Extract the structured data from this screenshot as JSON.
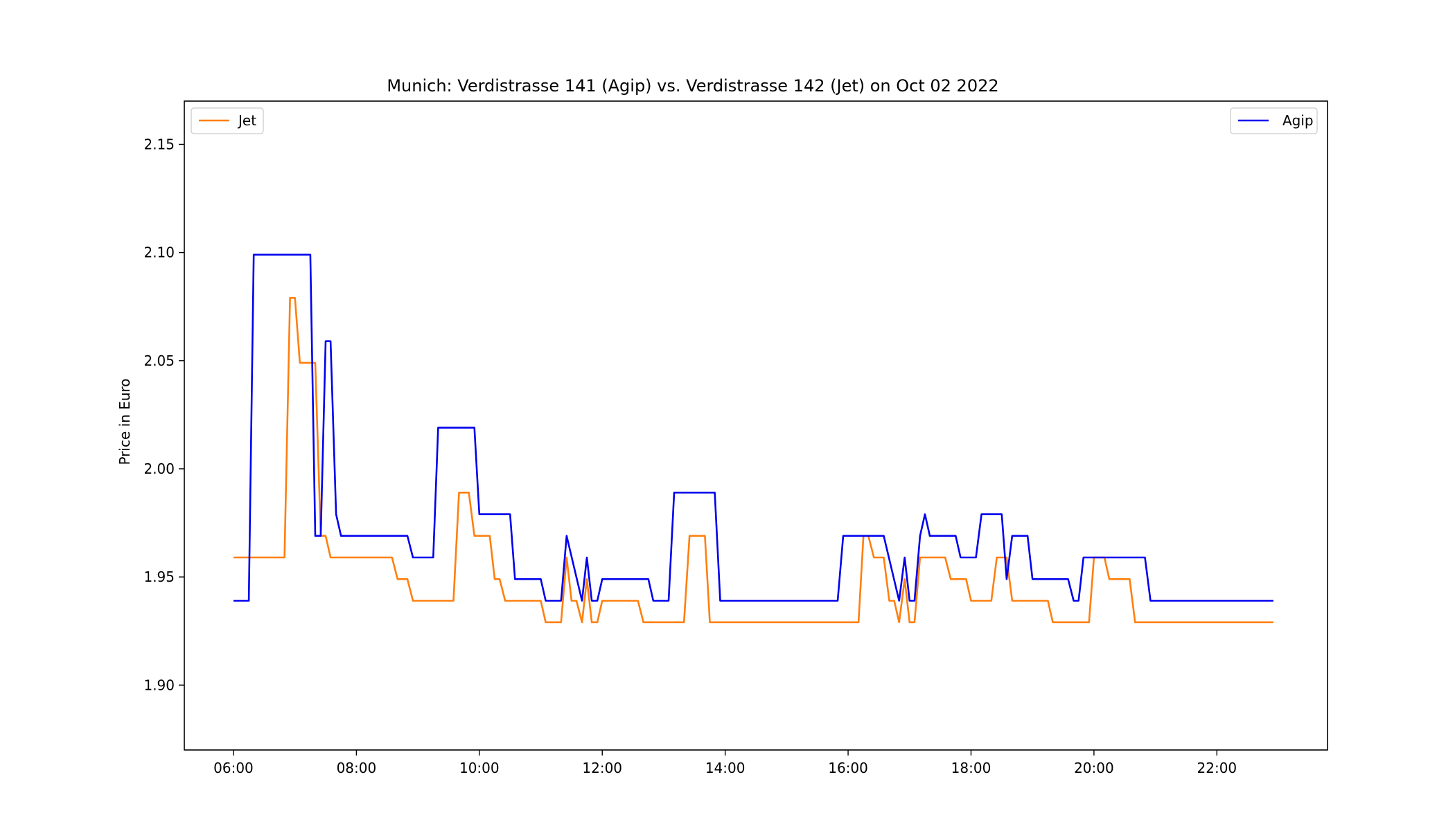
{
  "chart_data": {
    "type": "line",
    "title": "Munich: Verdistrasse 141 (Agip) vs. Verdistrasse 142 (Jet) on Oct 02 2022",
    "xlabel": "",
    "ylabel": "Price in Euro",
    "xlim": [
      5.2,
      23.8
    ],
    "ylim": [
      1.87,
      2.17
    ],
    "x_ticks": [
      {
        "value": 6,
        "label": "06:00"
      },
      {
        "value": 8,
        "label": "08:00"
      },
      {
        "value": 10,
        "label": "10:00"
      },
      {
        "value": 12,
        "label": "12:00"
      },
      {
        "value": 14,
        "label": "14:00"
      },
      {
        "value": 16,
        "label": "16:00"
      },
      {
        "value": 18,
        "label": "18:00"
      },
      {
        "value": 20,
        "label": "20:00"
      },
      {
        "value": 22,
        "label": "22:00"
      }
    ],
    "y_ticks": [
      {
        "value": 1.9,
        "label": "1.90"
      },
      {
        "value": 1.95,
        "label": "1.95"
      },
      {
        "value": 2.0,
        "label": "2.00"
      },
      {
        "value": 2.05,
        "label": "2.05"
      },
      {
        "value": 2.1,
        "label": "2.10"
      },
      {
        "value": 2.15,
        "label": "2.15"
      }
    ],
    "grid": false,
    "series": [
      {
        "name": "Jet",
        "color": "#ff7f0e",
        "legend_position": "upper-left",
        "points": [
          [
            6.0,
            1.959
          ],
          [
            6.83,
            1.959
          ],
          [
            6.92,
            2.079
          ],
          [
            7.0,
            2.079
          ],
          [
            7.08,
            2.049
          ],
          [
            7.33,
            2.049
          ],
          [
            7.42,
            1.969
          ],
          [
            7.5,
            1.969
          ],
          [
            7.58,
            1.959
          ],
          [
            8.58,
            1.959
          ],
          [
            8.67,
            1.949
          ],
          [
            8.83,
            1.949
          ],
          [
            8.92,
            1.939
          ],
          [
            9.58,
            1.939
          ],
          [
            9.67,
            1.989
          ],
          [
            9.83,
            1.989
          ],
          [
            9.92,
            1.969
          ],
          [
            10.17,
            1.969
          ],
          [
            10.25,
            1.949
          ],
          [
            10.33,
            1.949
          ],
          [
            10.42,
            1.939
          ],
          [
            11.0,
            1.939
          ],
          [
            11.08,
            1.929
          ],
          [
            11.33,
            1.929
          ],
          [
            11.42,
            1.959
          ],
          [
            11.5,
            1.939
          ],
          [
            11.58,
            1.939
          ],
          [
            11.67,
            1.929
          ],
          [
            11.75,
            1.949
          ],
          [
            11.83,
            1.929
          ],
          [
            11.92,
            1.929
          ],
          [
            12.0,
            1.939
          ],
          [
            12.58,
            1.939
          ],
          [
            12.67,
            1.929
          ],
          [
            13.33,
            1.929
          ],
          [
            13.42,
            1.969
          ],
          [
            13.67,
            1.969
          ],
          [
            13.75,
            1.929
          ],
          [
            16.17,
            1.929
          ],
          [
            16.25,
            1.969
          ],
          [
            16.33,
            1.969
          ],
          [
            16.42,
            1.959
          ],
          [
            16.58,
            1.959
          ],
          [
            16.67,
            1.939
          ],
          [
            16.75,
            1.939
          ],
          [
            16.83,
            1.929
          ],
          [
            16.92,
            1.949
          ],
          [
            17.0,
            1.929
          ],
          [
            17.08,
            1.929
          ],
          [
            17.17,
            1.959
          ],
          [
            17.58,
            1.959
          ],
          [
            17.67,
            1.949
          ],
          [
            17.92,
            1.949
          ],
          [
            18.0,
            1.939
          ],
          [
            18.33,
            1.939
          ],
          [
            18.42,
            1.959
          ],
          [
            18.58,
            1.959
          ],
          [
            18.67,
            1.939
          ],
          [
            19.25,
            1.939
          ],
          [
            19.33,
            1.929
          ],
          [
            19.92,
            1.929
          ],
          [
            20.0,
            1.959
          ],
          [
            20.17,
            1.959
          ],
          [
            20.25,
            1.949
          ],
          [
            20.58,
            1.949
          ],
          [
            20.67,
            1.929
          ],
          [
            22.92,
            1.929
          ]
        ]
      },
      {
        "name": "Agip",
        "color": "#0000ee",
        "legend_position": "upper-right",
        "points": [
          [
            6.0,
            1.939
          ],
          [
            6.25,
            1.939
          ],
          [
            6.33,
            2.099
          ],
          [
            7.25,
            2.099
          ],
          [
            7.33,
            1.969
          ],
          [
            7.42,
            1.969
          ],
          [
            7.5,
            2.059
          ],
          [
            7.58,
            2.059
          ],
          [
            7.67,
            1.979
          ],
          [
            7.75,
            1.969
          ],
          [
            8.83,
            1.969
          ],
          [
            8.92,
            1.959
          ],
          [
            9.25,
            1.959
          ],
          [
            9.33,
            2.019
          ],
          [
            9.92,
            2.019
          ],
          [
            10.0,
            1.979
          ],
          [
            10.5,
            1.979
          ],
          [
            10.58,
            1.949
          ],
          [
            11.0,
            1.949
          ],
          [
            11.08,
            1.939
          ],
          [
            11.33,
            1.939
          ],
          [
            11.42,
            1.969
          ],
          [
            11.67,
            1.939
          ],
          [
            11.75,
            1.959
          ],
          [
            11.83,
            1.939
          ],
          [
            11.92,
            1.939
          ],
          [
            12.0,
            1.949
          ],
          [
            12.75,
            1.949
          ],
          [
            12.83,
            1.939
          ],
          [
            13.08,
            1.939
          ],
          [
            13.17,
            1.989
          ],
          [
            13.83,
            1.989
          ],
          [
            13.92,
            1.939
          ],
          [
            15.83,
            1.939
          ],
          [
            15.92,
            1.969
          ],
          [
            16.58,
            1.969
          ],
          [
            16.83,
            1.939
          ],
          [
            16.92,
            1.959
          ],
          [
            17.0,
            1.939
          ],
          [
            17.08,
            1.939
          ],
          [
            17.17,
            1.969
          ],
          [
            17.25,
            1.979
          ],
          [
            17.33,
            1.969
          ],
          [
            17.75,
            1.969
          ],
          [
            17.83,
            1.959
          ],
          [
            18.08,
            1.959
          ],
          [
            18.17,
            1.979
          ],
          [
            18.5,
            1.979
          ],
          [
            18.58,
            1.949
          ],
          [
            18.67,
            1.969
          ],
          [
            18.92,
            1.969
          ],
          [
            19.0,
            1.949
          ],
          [
            19.58,
            1.949
          ],
          [
            19.67,
            1.939
          ],
          [
            19.75,
            1.939
          ],
          [
            19.83,
            1.959
          ],
          [
            20.83,
            1.959
          ],
          [
            20.92,
            1.939
          ],
          [
            22.92,
            1.939
          ]
        ]
      }
    ]
  }
}
